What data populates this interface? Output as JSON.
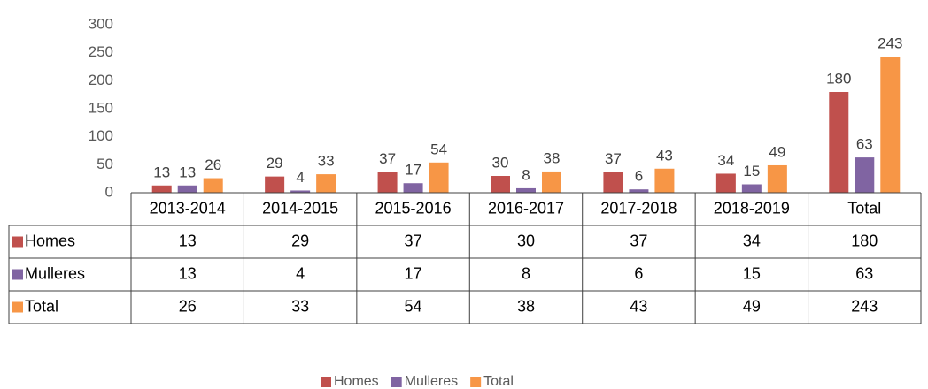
{
  "chart_data": {
    "type": "bar",
    "categories": [
      "2013-2014",
      "2014-2015",
      "2015-2016",
      "2016-2017",
      "2017-2018",
      "2018-2019",
      "Total"
    ],
    "series": [
      {
        "name": "Homes",
        "color": "#c0504d",
        "values": [
          13,
          29,
          37,
          30,
          37,
          34,
          180
        ]
      },
      {
        "name": "Mulleres",
        "color": "#8064a2",
        "values": [
          13,
          4,
          17,
          8,
          6,
          15,
          63
        ]
      },
      {
        "name": "Total",
        "color": "#f79646",
        "values": [
          26,
          33,
          54,
          38,
          43,
          49,
          243
        ]
      }
    ],
    "ylim": [
      0,
      300
    ],
    "yticks": [
      0,
      50,
      100,
      150,
      200,
      250,
      300
    ],
    "legend": "bottom",
    "data_table": true
  }
}
